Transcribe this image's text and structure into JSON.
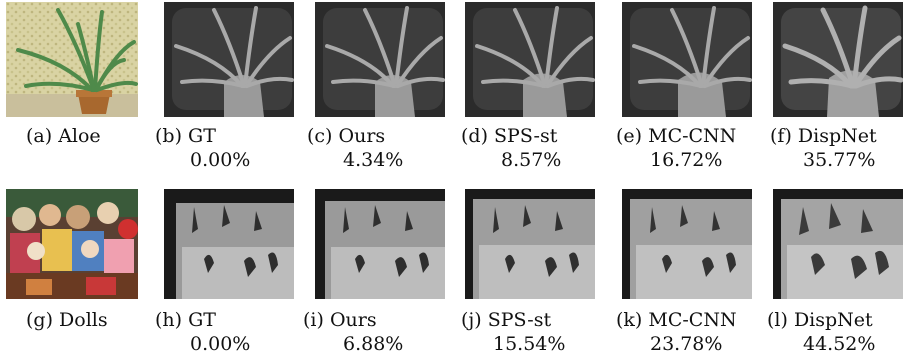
{
  "figure": {
    "rows": [
      {
        "scene": "aloe",
        "panels": [
          {
            "kind": "photo",
            "caption": "(a) Aloe",
            "error": ""
          },
          {
            "kind": "gt",
            "caption": "(b) GT",
            "error": "0.00%"
          },
          {
            "kind": "ours",
            "caption": "(c) Ours",
            "error": "4.34%"
          },
          {
            "kind": "sps",
            "caption": "(d) SPS-st",
            "error": "8.57%"
          },
          {
            "kind": "mccnn",
            "caption": "(e) MC-CNN",
            "error": "16.72%"
          },
          {
            "kind": "dispnet",
            "caption": "(f) DispNet",
            "error": "35.77%"
          }
        ]
      },
      {
        "scene": "dolls",
        "panels": [
          {
            "kind": "photo",
            "caption": "(g) Dolls",
            "error": ""
          },
          {
            "kind": "gt",
            "caption": "(h) GT",
            "error": "0.00%"
          },
          {
            "kind": "ours",
            "caption": "(i) Ours",
            "error": "6.88%"
          },
          {
            "kind": "sps",
            "caption": "(j) SPS-st",
            "error": "15.54%"
          },
          {
            "kind": "mccnn",
            "caption": "(k) MC-CNN",
            "error": "23.78%"
          },
          {
            "kind": "dispnet",
            "caption": "(l) DispNet",
            "error": "44.52%"
          }
        ]
      }
    ]
  }
}
